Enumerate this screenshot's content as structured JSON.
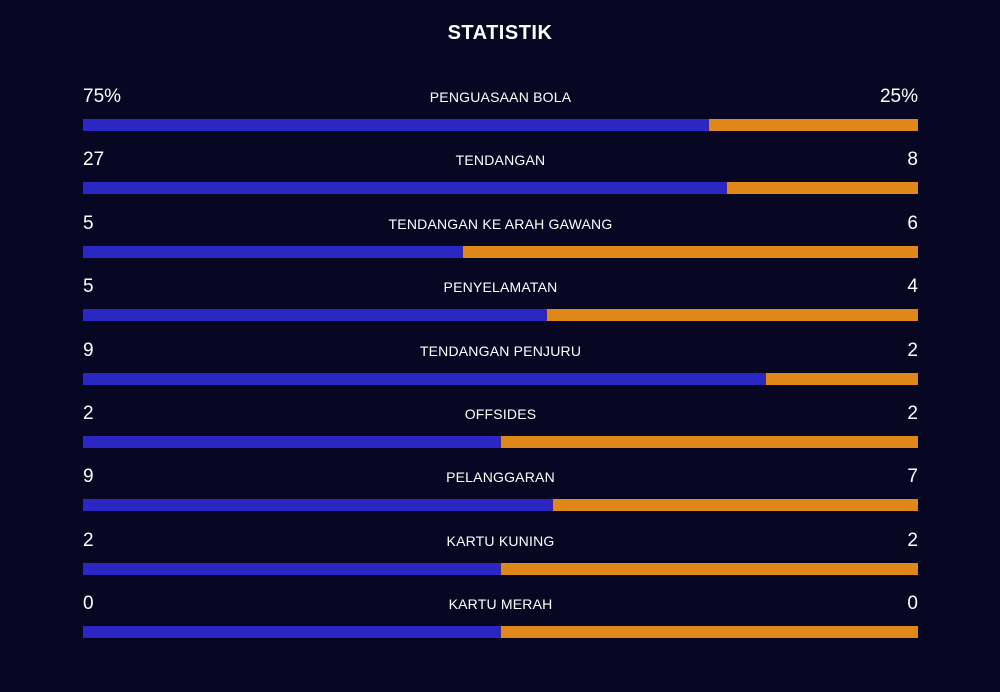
{
  "title": "STATISTIK",
  "colors": {
    "background": "#080723",
    "home_bar": "#2B27C2",
    "away_bar": "#DF8719"
  },
  "stats": [
    {
      "label": "PENGUASAAN BOLA",
      "home": "75%",
      "away": "25%",
      "home_share": 0.75
    },
    {
      "label": "TENDANGAN",
      "home": "27",
      "away": "8",
      "home_share": 0.771
    },
    {
      "label": "TENDANGAN KE ARAH GAWANG",
      "home": "5",
      "away": "6",
      "home_share": 0.455
    },
    {
      "label": "PENYELAMATAN",
      "home": "5",
      "away": "4",
      "home_share": 0.556
    },
    {
      "label": "TENDANGAN PENJURU",
      "home": "9",
      "away": "2",
      "home_share": 0.818
    },
    {
      "label": "OFFSIDES",
      "home": "2",
      "away": "2",
      "home_share": 0.5
    },
    {
      "label": "PELANGGARAN",
      "home": "9",
      "away": "7",
      "home_share": 0.5625
    },
    {
      "label": "KARTU KUNING",
      "home": "2",
      "away": "2",
      "home_share": 0.5
    },
    {
      "label": "KARTU MERAH",
      "home": "0",
      "away": "0",
      "home_share": 0.5
    }
  ]
}
